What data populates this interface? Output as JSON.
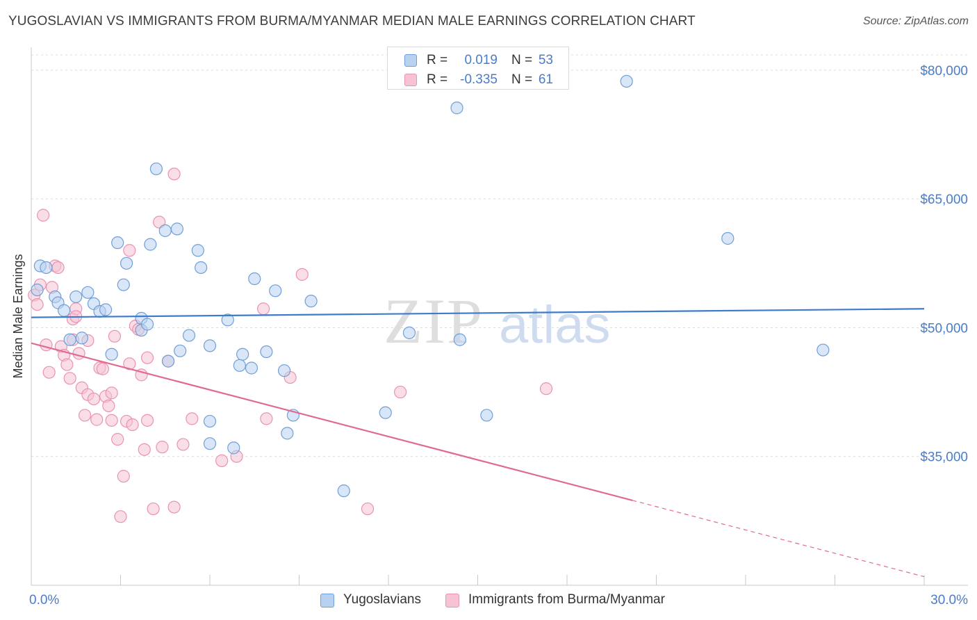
{
  "title": "YUGOSLAVIAN VS IMMIGRANTS FROM BURMA/MYANMAR MEDIAN MALE EARNINGS CORRELATION CHART",
  "source": "Source: ZipAtlas.com",
  "watermark": {
    "zip": "ZIP",
    "atlas": "atlas"
  },
  "colors": {
    "blue_fill": "#b9d1f0",
    "blue_stroke": "#6f9fd8",
    "blue_line": "#3f7acb",
    "pink_fill": "#f6c3d3",
    "pink_stroke": "#e993b0",
    "pink_line": "#e06a93",
    "axis_text": "#4a7cc9",
    "grid": "#dcdcdc"
  },
  "stats": [
    {
      "r_label": "R =",
      "r_value": "0.019",
      "n_label": "N =",
      "n_value": "53",
      "color": "blue"
    },
    {
      "r_label": "R =",
      "r_value": "-0.335",
      "n_label": "N =",
      "n_value": "61",
      "color": "pink"
    }
  ],
  "chart_data": {
    "type": "scatter",
    "title": "YUGOSLAVIAN VS IMMIGRANTS FROM BURMA/MYANMAR MEDIAN MALE EARNINGS CORRELATION CHART",
    "xlabel": "",
    "ylabel": "Median Male Earnings",
    "xlim": [
      0,
      30
    ],
    "ylim": [
      20000,
      82500
    ],
    "x_tick_labels": [
      "0.0%",
      "30.0%"
    ],
    "y_ticks": [
      35000,
      50000,
      65000,
      80000
    ],
    "y_tick_labels": [
      "$35,000",
      "$50,000",
      "$65,000",
      "$80,000"
    ],
    "grid": true,
    "legend": "bottom",
    "series": [
      {
        "name": "Yugoslavians",
        "color": "blue",
        "trend": {
          "x": [
            0,
            30
          ],
          "y": [
            51200,
            52200
          ],
          "dashed_from": null
        },
        "points": [
          [
            0.3,
            57200
          ],
          [
            0.5,
            57000
          ],
          [
            0.8,
            53600
          ],
          [
            0.9,
            52900
          ],
          [
            1.1,
            52000
          ],
          [
            1.3,
            48600
          ],
          [
            1.5,
            53600
          ],
          [
            1.7,
            48800
          ],
          [
            1.9,
            54100
          ],
          [
            2.1,
            52800
          ],
          [
            2.3,
            51900
          ],
          [
            2.5,
            52100
          ],
          [
            2.7,
            46900
          ],
          [
            2.9,
            59900
          ],
          [
            3.1,
            55000
          ],
          [
            3.2,
            57500
          ],
          [
            3.7,
            49700
          ],
          [
            3.7,
            51100
          ],
          [
            3.9,
            50400
          ],
          [
            4.0,
            59700
          ],
          [
            4.2,
            68500
          ],
          [
            4.5,
            61300
          ],
          [
            4.6,
            46100
          ],
          [
            4.9,
            61500
          ],
          [
            5.0,
            47300
          ],
          [
            5.3,
            49100
          ],
          [
            5.6,
            59000
          ],
          [
            5.7,
            57000
          ],
          [
            6.0,
            47900
          ],
          [
            6.0,
            36500
          ],
          [
            6.0,
            39100
          ],
          [
            6.6,
            50900
          ],
          [
            6.8,
            36000
          ],
          [
            7.0,
            45600
          ],
          [
            7.1,
            46900
          ],
          [
            7.4,
            45300
          ],
          [
            7.5,
            55700
          ],
          [
            7.9,
            47200
          ],
          [
            8.2,
            54300
          ],
          [
            8.5,
            45000
          ],
          [
            8.6,
            37700
          ],
          [
            8.8,
            39800
          ],
          [
            9.4,
            53100
          ],
          [
            10.5,
            31000
          ],
          [
            11.9,
            40100
          ],
          [
            12.7,
            49400
          ],
          [
            14.3,
            75600
          ],
          [
            14.4,
            48600
          ],
          [
            15.3,
            39800
          ],
          [
            20.0,
            78700
          ],
          [
            23.4,
            60400
          ],
          [
            26.6,
            47400
          ],
          [
            0.2,
            54400
          ]
        ]
      },
      {
        "name": "Immigrants from Burma/Myanmar",
        "color": "pink",
        "trend": {
          "x": [
            0,
            30
          ],
          "y": [
            48200,
            21000
          ],
          "dashed_from": 20.2
        },
        "points": [
          [
            0.1,
            53800
          ],
          [
            0.2,
            52700
          ],
          [
            0.3,
            55000
          ],
          [
            0.4,
            63100
          ],
          [
            0.5,
            48000
          ],
          [
            0.6,
            44800
          ],
          [
            0.7,
            54700
          ],
          [
            0.8,
            57200
          ],
          [
            0.9,
            57000
          ],
          [
            1.0,
            47800
          ],
          [
            1.1,
            46800
          ],
          [
            1.2,
            45700
          ],
          [
            1.3,
            44100
          ],
          [
            1.4,
            48600
          ],
          [
            1.4,
            51000
          ],
          [
            1.5,
            52200
          ],
          [
            1.5,
            51300
          ],
          [
            1.6,
            47000
          ],
          [
            1.7,
            43000
          ],
          [
            1.8,
            39800
          ],
          [
            1.9,
            48500
          ],
          [
            1.9,
            42200
          ],
          [
            2.1,
            41700
          ],
          [
            2.2,
            39300
          ],
          [
            2.3,
            45300
          ],
          [
            2.4,
            45200
          ],
          [
            2.5,
            42000
          ],
          [
            2.6,
            40900
          ],
          [
            2.7,
            39200
          ],
          [
            2.7,
            42400
          ],
          [
            2.8,
            49000
          ],
          [
            2.9,
            37000
          ],
          [
            3.0,
            28000
          ],
          [
            3.1,
            32700
          ],
          [
            3.2,
            39100
          ],
          [
            3.3,
            59000
          ],
          [
            3.3,
            45800
          ],
          [
            3.4,
            38700
          ],
          [
            3.5,
            50200
          ],
          [
            3.6,
            49800
          ],
          [
            3.7,
            44500
          ],
          [
            3.8,
            35800
          ],
          [
            3.9,
            39200
          ],
          [
            3.9,
            46500
          ],
          [
            4.1,
            28900
          ],
          [
            4.3,
            62300
          ],
          [
            4.4,
            36100
          ],
          [
            4.6,
            46100
          ],
          [
            4.8,
            29100
          ],
          [
            4.8,
            67900
          ],
          [
            5.1,
            36400
          ],
          [
            5.4,
            39400
          ],
          [
            6.4,
            34500
          ],
          [
            6.9,
            35000
          ],
          [
            7.8,
            52200
          ],
          [
            7.9,
            39400
          ],
          [
            8.7,
            44200
          ],
          [
            9.1,
            56200
          ],
          [
            11.3,
            28900
          ],
          [
            12.4,
            42500
          ],
          [
            17.3,
            42900
          ]
        ]
      }
    ]
  },
  "bottom_legend": [
    {
      "label": "Yugoslavians",
      "color": "blue"
    },
    {
      "label": "Immigrants from Burma/Myanmar",
      "color": "pink"
    }
  ]
}
